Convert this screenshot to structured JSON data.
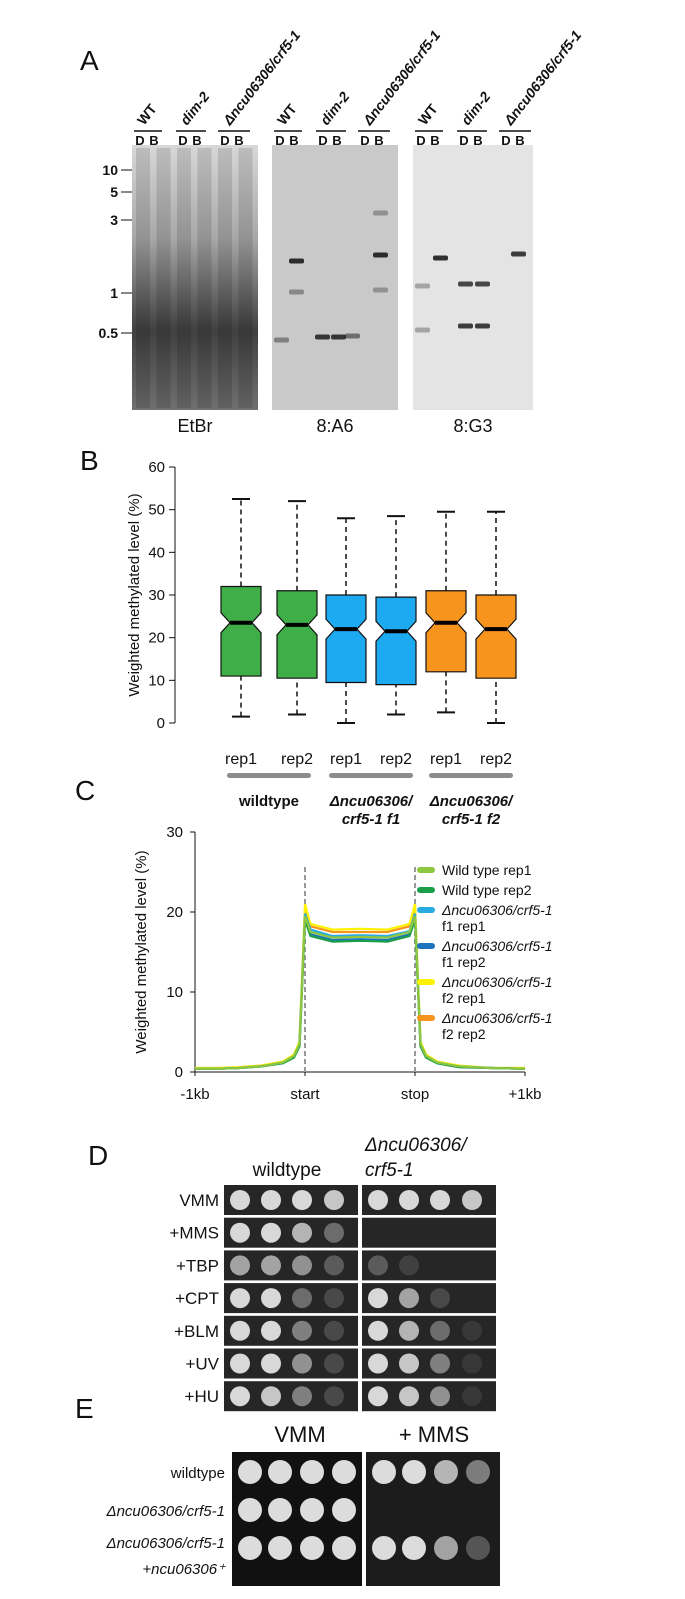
{
  "panel_labels": [
    "A",
    "B",
    "C",
    "D",
    "E"
  ],
  "panel_a": {
    "strains": [
      "WT",
      "dim-2",
      "Δncu06306/crf5-1"
    ],
    "lanes": [
      "D",
      "B"
    ],
    "size_markers": [
      "10",
      "5",
      "3",
      "1",
      "0.5"
    ],
    "gels": [
      {
        "label": "EtBr"
      },
      {
        "label": "8:A6"
      },
      {
        "label": "8:G3"
      }
    ]
  },
  "chart_data": [
    {
      "type": "box",
      "ylabel": "Weighted methylated level (%)",
      "categories": [
        "rep1",
        "rep2",
        "rep1",
        "rep2",
        "rep1",
        "rep2"
      ],
      "colors": [
        "#3fae49",
        "#3fae49",
        "#1eaaf1",
        "#1eaaf1",
        "#f7941d",
        "#f7941d"
      ],
      "whislo": [
        1.5,
        2,
        0,
        2,
        2.5,
        0
      ],
      "q1": [
        11,
        10.5,
        9.5,
        9,
        12,
        10.5
      ],
      "median": [
        23.5,
        23,
        22,
        21.5,
        23.5,
        22
      ],
      "q3": [
        32,
        31,
        30,
        29.5,
        31,
        30
      ],
      "whishi": [
        52.5,
        52,
        48,
        48.5,
        49.5,
        49.5
      ],
      "groups": [
        {
          "lines": [
            "wildtype"
          ]
        },
        {
          "lines": [
            "Δncu06306/",
            "crf5-1 f1"
          ]
        },
        {
          "lines": [
            "Δncu06306/",
            "crf5-1 f2"
          ]
        }
      ],
      "ylim": [
        0,
        60
      ],
      "yticks": [
        0,
        10,
        20,
        30,
        40,
        50,
        60
      ]
    },
    {
      "type": "line",
      "ylabel": "Weighted methylated level (%)",
      "x": [
        0,
        0.2,
        0.4,
        0.6,
        0.8,
        0.9,
        0.95,
        1,
        1.05,
        1.25,
        1.5,
        1.75,
        1.95,
        2,
        2.05,
        2.1,
        2.2,
        2.4,
        2.7,
        3
      ],
      "xlim": [
        0,
        3
      ],
      "xticks": [
        {
          "value": 0,
          "label": "-1kb"
        },
        {
          "value": 1,
          "label": "start"
        },
        {
          "value": 2,
          "label": "stop"
        },
        {
          "value": 3,
          "label": "+1kb"
        }
      ],
      "vlines": [
        1,
        2
      ],
      "ylim": [
        0,
        30
      ],
      "yticks": [
        0,
        10,
        20,
        30
      ],
      "legend": "upper right",
      "series": [
        {
          "name": "Wild type rep1",
          "color": "#8dc63f",
          "values": [
            0.4,
            0.4,
            0.5,
            0.7,
            1.2,
            2,
            3.5,
            19.5,
            17.5,
            16.8,
            16.9,
            16.8,
            17.5,
            19.5,
            3.5,
            2,
            1.2,
            0.7,
            0.5,
            0.4
          ]
        },
        {
          "name": "Wild type rep2",
          "color": "#1a9e4a",
          "values": [
            0.4,
            0.4,
            0.5,
            0.7,
            1.1,
            1.8,
            3.2,
            19,
            17,
            16.3,
            16.4,
            16.3,
            17,
            19,
            3.2,
            1.8,
            1.1,
            0.6,
            0.5,
            0.4
          ]
        },
        {
          "name": "Δncu06306/crf5-1 f1 rep1",
          "color": "#29abe2",
          "values": [
            0.4,
            0.4,
            0.5,
            0.7,
            1.2,
            2,
            3.5,
            19.8,
            17.8,
            17,
            17.1,
            17,
            17.6,
            19.8,
            3.5,
            2,
            1.2,
            0.7,
            0.5,
            0.4
          ]
        },
        {
          "name": "Δncu06306/crf5-1 f1 rep2",
          "color": "#1c75bc",
          "values": [
            0.4,
            0.4,
            0.5,
            0.7,
            1.1,
            1.9,
            3.3,
            19.3,
            17.2,
            16.5,
            16.6,
            16.5,
            17.2,
            19.3,
            3.3,
            1.9,
            1.1,
            0.6,
            0.5,
            0.4
          ]
        },
        {
          "name": "Δncu06306/crf5-1 f2 rep1",
          "color": "#fff200",
          "values": [
            0.5,
            0.5,
            0.6,
            0.8,
            1.3,
            2.2,
            3.8,
            21,
            18.5,
            17.8,
            17.9,
            17.8,
            18.5,
            21,
            3.8,
            2.2,
            1.3,
            0.8,
            0.5,
            0.5
          ]
        },
        {
          "name": "Δncu06306/crf5-1 f2 rep2",
          "color": "#f7941d",
          "values": [
            0.5,
            0.5,
            0.6,
            0.8,
            1.3,
            2.1,
            3.7,
            20.5,
            18.2,
            17.5,
            17.5,
            17.5,
            18.2,
            20.5,
            3.7,
            2.1,
            1.3,
            0.7,
            0.5,
            0.5
          ]
        }
      ]
    }
  ],
  "panel_d": {
    "column_headers": [
      [
        "wildtype"
      ],
      [
        "Δncu06306/",
        "crf5-1"
      ]
    ],
    "rows": [
      "VMM",
      "+MMS",
      "+TBP",
      "+CPT",
      "+BLM",
      "+UV",
      "+HU"
    ]
  },
  "panel_e": {
    "column_headers": [
      "VMM",
      "+ MMS"
    ],
    "rows": [
      [
        "wildtype"
      ],
      [
        "Δncu06306/crf5-1"
      ],
      [
        "Δncu06306/crf5-1",
        "+ncu06306⁺"
      ]
    ]
  }
}
